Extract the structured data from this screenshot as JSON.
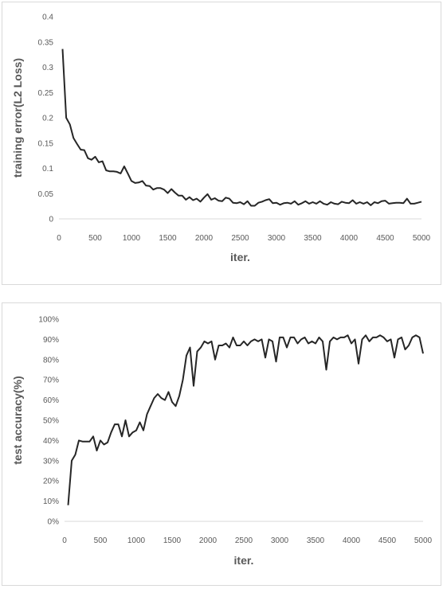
{
  "chart_data": [
    {
      "type": "line",
      "xlabel": "iter.",
      "ylabel": "training error(L2 Loss)",
      "xlim": [
        0,
        5000
      ],
      "ylim": [
        0,
        0.4
      ],
      "x_ticks": [
        "0",
        "500",
        "1000",
        "1500",
        "2000",
        "2500",
        "3000",
        "3500",
        "4000",
        "4500",
        "5000"
      ],
      "y_ticks": [
        "0",
        "0.05",
        "0.1",
        "0.15",
        "0.2",
        "0.25",
        "0.3",
        "0.35",
        "0.4"
      ],
      "grid": false,
      "line_color": "#262626",
      "series": [
        {
          "x": [
            50,
            100,
            150,
            200,
            250,
            300,
            350,
            400,
            450,
            500,
            550,
            600,
            650,
            700,
            750,
            800,
            850,
            900,
            950,
            1000,
            1050,
            1100,
            1150,
            1200,
            1250,
            1300,
            1350,
            1400,
            1450,
            1500,
            1550,
            1600,
            1650,
            1700,
            1750,
            1800,
            1850,
            1900,
            1950,
            2000,
            2050,
            2100,
            2150,
            2200,
            2250,
            2300,
            2350,
            2400,
            2450,
            2500,
            2550,
            2600,
            2650,
            2700,
            2750,
            2800,
            2850,
            2900,
            2950,
            3000,
            3050,
            3100,
            3150,
            3200,
            3250,
            3300,
            3350,
            3400,
            3450,
            3500,
            3550,
            3600,
            3650,
            3700,
            3750,
            3800,
            3850,
            3900,
            3950,
            4000,
            4050,
            4100,
            4150,
            4200,
            4250,
            4300,
            4350,
            4400,
            4450,
            4500,
            4550,
            4600,
            4650,
            4700,
            4750,
            4800,
            4850,
            4900,
            4950,
            5000
          ],
          "y": [
            0.336,
            0.2,
            0.187,
            0.16,
            0.148,
            0.137,
            0.136,
            0.12,
            0.117,
            0.123,
            0.112,
            0.114,
            0.096,
            0.094,
            0.094,
            0.093,
            0.09,
            0.104,
            0.09,
            0.075,
            0.071,
            0.072,
            0.075,
            0.066,
            0.065,
            0.058,
            0.061,
            0.061,
            0.058,
            0.051,
            0.059,
            0.052,
            0.046,
            0.046,
            0.038,
            0.043,
            0.037,
            0.04,
            0.034,
            0.042,
            0.049,
            0.038,
            0.041,
            0.036,
            0.035,
            0.042,
            0.04,
            0.032,
            0.031,
            0.033,
            0.029,
            0.035,
            0.026,
            0.026,
            0.032,
            0.034,
            0.037,
            0.039,
            0.031,
            0.032,
            0.028,
            0.031,
            0.032,
            0.03,
            0.035,
            0.028,
            0.031,
            0.035,
            0.03,
            0.033,
            0.03,
            0.035,
            0.03,
            0.028,
            0.033,
            0.03,
            0.029,
            0.034,
            0.032,
            0.031,
            0.037,
            0.03,
            0.033,
            0.03,
            0.033,
            0.027,
            0.033,
            0.031,
            0.035,
            0.036,
            0.03,
            0.031,
            0.032,
            0.032,
            0.031,
            0.04,
            0.03,
            0.03,
            0.032,
            0.034
          ]
        }
      ]
    },
    {
      "type": "line",
      "xlabel": "iter.",
      "ylabel": "test accuracy(%)",
      "xlim": [
        0,
        5000
      ],
      "ylim": [
        0,
        100
      ],
      "x_ticks": [
        "0",
        "500",
        "1000",
        "1500",
        "2000",
        "2500",
        "3000",
        "3500",
        "4000",
        "4500",
        "5000"
      ],
      "y_ticks": [
        "0%",
        "10%",
        "20%",
        "30%",
        "40%",
        "50%",
        "60%",
        "70%",
        "80%",
        "90%",
        "100%"
      ],
      "grid": false,
      "line_color": "#262626",
      "series": [
        {
          "x": [
            50,
            100,
            150,
            200,
            250,
            300,
            350,
            400,
            450,
            500,
            550,
            600,
            650,
            700,
            750,
            800,
            850,
            900,
            950,
            1000,
            1050,
            1100,
            1150,
            1200,
            1250,
            1300,
            1350,
            1400,
            1450,
            1500,
            1550,
            1600,
            1650,
            1700,
            1750,
            1800,
            1850,
            1900,
            1950,
            2000,
            2050,
            2100,
            2150,
            2200,
            2250,
            2300,
            2350,
            2400,
            2450,
            2500,
            2550,
            2600,
            2650,
            2700,
            2750,
            2800,
            2850,
            2900,
            2950,
            3000,
            3050,
            3100,
            3150,
            3200,
            3250,
            3300,
            3350,
            3400,
            3450,
            3500,
            3550,
            3600,
            3650,
            3700,
            3750,
            3800,
            3850,
            3900,
            3950,
            4000,
            4050,
            4100,
            4150,
            4200,
            4250,
            4300,
            4350,
            4400,
            4450,
            4500,
            4550,
            4600,
            4650,
            4700,
            4750,
            4800,
            4850,
            4900,
            4950,
            5000
          ],
          "y": [
            8,
            30,
            33,
            40,
            39.5,
            39.5,
            39.5,
            42,
            35,
            40,
            38,
            39,
            44,
            48,
            48,
            42,
            50,
            42,
            44,
            45,
            49,
            45,
            53,
            57,
            61,
            63,
            61,
            60,
            64,
            59,
            57,
            62,
            70,
            82,
            86,
            67,
            84,
            86,
            89,
            88,
            89,
            80,
            87,
            87,
            88,
            86,
            91,
            87,
            87,
            89,
            87,
            89,
            90,
            89,
            90,
            81,
            90,
            89,
            79,
            91,
            91,
            86,
            91,
            91,
            88,
            90,
            91,
            88,
            89,
            88,
            91,
            89,
            75,
            89,
            91,
            90,
            91,
            91,
            92,
            88,
            90,
            78,
            90,
            92,
            89,
            91,
            91,
            92,
            91,
            89,
            90,
            81,
            90,
            91,
            85,
            87,
            91,
            92,
            91,
            83
          ]
        }
      ]
    }
  ]
}
